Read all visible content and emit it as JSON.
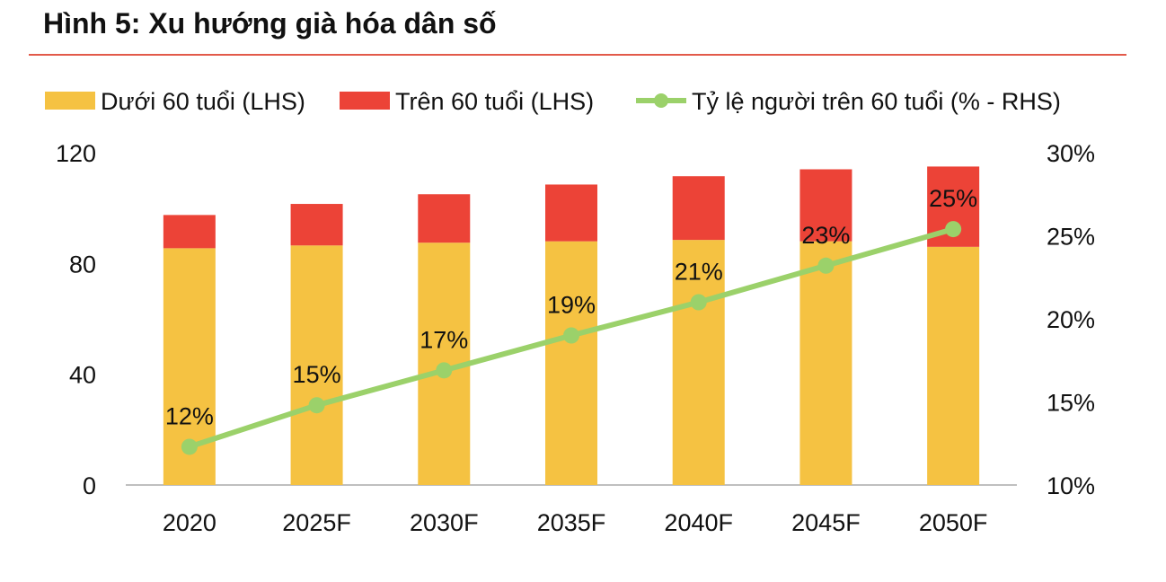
{
  "figure_title": "Hình 5: Xu hướng già hóa dân số",
  "colors": {
    "under60": "#f5c242",
    "over60": "#ec4337",
    "ratio": "#9bd16a",
    "axis": "#bfbfbf",
    "rule": "#e25a4a"
  },
  "chart_data": {
    "type": "bar",
    "stacked": true,
    "title": "Hình 5: Xu hướng già hóa dân số",
    "categories": [
      "2020",
      "2025F",
      "2030F",
      "2035F",
      "2040F",
      "2045F",
      "2050F"
    ],
    "series": [
      {
        "name": "Dưới 60 tuổi (LHS)",
        "type": "bar",
        "axis": "left",
        "values": [
          85.5,
          86.5,
          87.5,
          88,
          88.5,
          88,
          86
        ]
      },
      {
        "name": "Trên 60 tuổi (LHS)",
        "type": "bar",
        "axis": "left",
        "values": [
          12,
          15,
          17.5,
          20.5,
          23,
          26,
          29
        ]
      },
      {
        "name": "Tỷ lệ người trên 60 tuổi (% - RHS)",
        "type": "line",
        "axis": "right",
        "values": [
          12.3,
          14.8,
          16.9,
          19.0,
          21.0,
          23.2,
          25.4
        ]
      }
    ],
    "data_labels": [
      "12%",
      "15%",
      "17%",
      "19%",
      "21%",
      "23%",
      "25%"
    ],
    "y_left": {
      "min": 0,
      "max": 120,
      "ticks": [
        "0",
        "40",
        "80",
        "120"
      ],
      "tick_values": [
        0,
        40,
        80,
        120
      ]
    },
    "y_right": {
      "min": 10,
      "max": 30,
      "ticks": [
        "10%",
        "15%",
        "20%",
        "25%",
        "30%"
      ],
      "tick_values": [
        10,
        15,
        20,
        25,
        30
      ]
    },
    "legend_position": "top",
    "grid": false
  }
}
